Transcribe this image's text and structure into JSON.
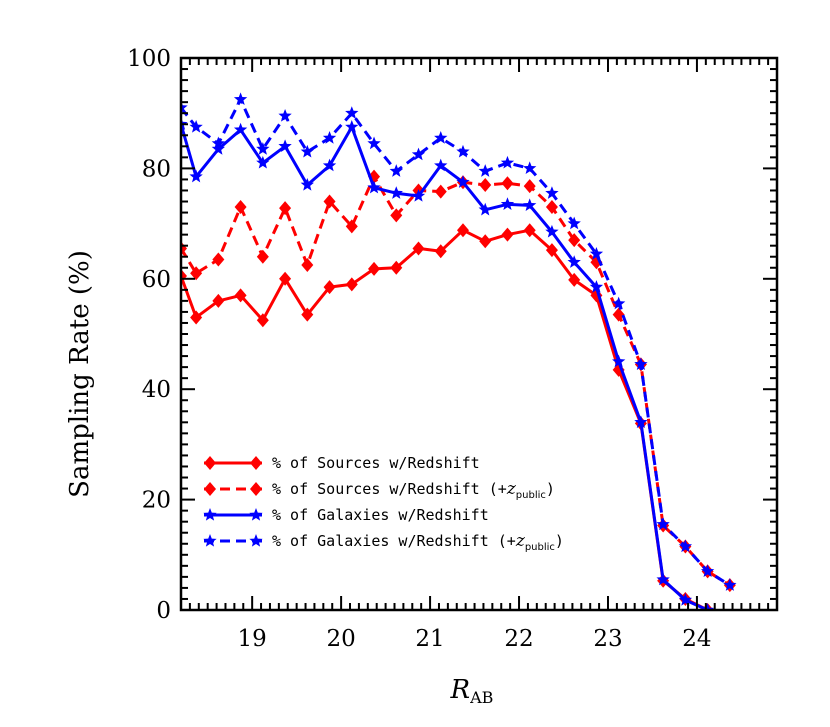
{
  "chart_data": {
    "type": "line",
    "xlabel": "R",
    "xlabel_sub": "AB",
    "ylabel": "Sampling Rate (%)",
    "xlim": [
      18.2,
      24.9
    ],
    "ylim": [
      0,
      100
    ],
    "xticks": [
      "19",
      "20",
      "21",
      "22",
      "23",
      "24"
    ],
    "xtick_values": [
      19,
      20,
      21,
      22,
      23,
      24
    ],
    "yticks": [
      "0",
      "20",
      "40",
      "60",
      "80",
      "100"
    ],
    "ytick_values": [
      0,
      20,
      40,
      60,
      80,
      100
    ],
    "legend_position": "bottom-left",
    "series": [
      {
        "name": "% of Sources w/Redshift",
        "color": "#ff0000",
        "dash": "solid",
        "marker": "diamond",
        "x": [
          18.2,
          18.37,
          18.62,
          18.87,
          19.12,
          19.37,
          19.62,
          19.87,
          20.12,
          20.37,
          20.62,
          20.87,
          21.12,
          21.37,
          21.62,
          21.87,
          22.12,
          22.37,
          22.62,
          22.87,
          23.12,
          23.37,
          23.62,
          23.87,
          24.12
        ],
        "values": [
          60.5,
          53.0,
          56.0,
          57.0,
          52.5,
          60.0,
          53.5,
          58.5,
          59.0,
          61.8,
          62.0,
          65.5,
          65.0,
          68.8,
          66.8,
          68.0,
          68.8,
          65.2,
          59.8,
          57.0,
          43.5,
          33.8,
          5.3,
          2.0,
          0.0
        ]
      },
      {
        "name": "% of Sources w/Redshift (+zpublic)",
        "label_prefix": "% of Sources w/Redshift (+",
        "label_sub": "public",
        "color": "#ff0000",
        "dash": "dashed",
        "marker": "diamond",
        "x": [
          18.2,
          18.37,
          18.62,
          18.87,
          19.12,
          19.37,
          19.62,
          19.87,
          20.12,
          20.37,
          20.62,
          20.87,
          21.12,
          21.37,
          21.62,
          21.87,
          22.12,
          22.37,
          22.62,
          22.87,
          23.12,
          23.37,
          23.62,
          23.87,
          24.12,
          24.37
        ],
        "values": [
          65.5,
          61.0,
          63.5,
          73.0,
          64.0,
          72.8,
          62.5,
          74.0,
          69.5,
          78.5,
          71.5,
          76.0,
          75.8,
          77.5,
          77.0,
          77.3,
          76.8,
          73.0,
          67.0,
          63.0,
          53.5,
          44.5,
          15.3,
          11.5,
          7.0,
          4.5
        ]
      },
      {
        "name": "% of Galaxies w/Redshift",
        "color": "#0000ff",
        "dash": "solid",
        "marker": "star",
        "x": [
          18.2,
          18.37,
          18.62,
          18.87,
          19.12,
          19.37,
          19.62,
          19.87,
          20.12,
          20.37,
          20.62,
          20.87,
          21.12,
          21.37,
          21.62,
          21.87,
          22.12,
          22.37,
          22.62,
          22.87,
          23.12,
          23.37,
          23.62,
          23.87,
          24.12
        ],
        "values": [
          88.0,
          78.5,
          83.5,
          87.0,
          81.0,
          84.0,
          77.0,
          80.5,
          87.5,
          76.5,
          75.5,
          75.0,
          80.5,
          77.5,
          72.5,
          73.5,
          73.3,
          68.5,
          63.0,
          58.5,
          45.0,
          34.0,
          5.5,
          1.8,
          0.0
        ]
      },
      {
        "name": "% of Galaxies w/Redshift (+zpublic)",
        "label_prefix": "% of Galaxies w/Redshift (+",
        "label_sub": "public",
        "color": "#0000ff",
        "dash": "dashed",
        "marker": "star",
        "x": [
          18.2,
          18.37,
          18.62,
          18.87,
          19.12,
          19.37,
          19.62,
          19.87,
          20.12,
          20.37,
          20.62,
          20.87,
          21.12,
          21.37,
          21.62,
          21.87,
          22.12,
          22.37,
          22.62,
          22.87,
          23.12,
          23.37,
          23.62,
          23.87,
          24.12,
          24.37
        ],
        "values": [
          91.0,
          87.5,
          84.5,
          92.5,
          83.5,
          89.5,
          83.0,
          85.5,
          90.0,
          84.5,
          79.5,
          82.5,
          85.5,
          83.0,
          79.5,
          81.0,
          80.0,
          75.5,
          70.0,
          64.5,
          55.5,
          44.5,
          15.5,
          11.5,
          7.0,
          4.5
        ]
      }
    ]
  }
}
